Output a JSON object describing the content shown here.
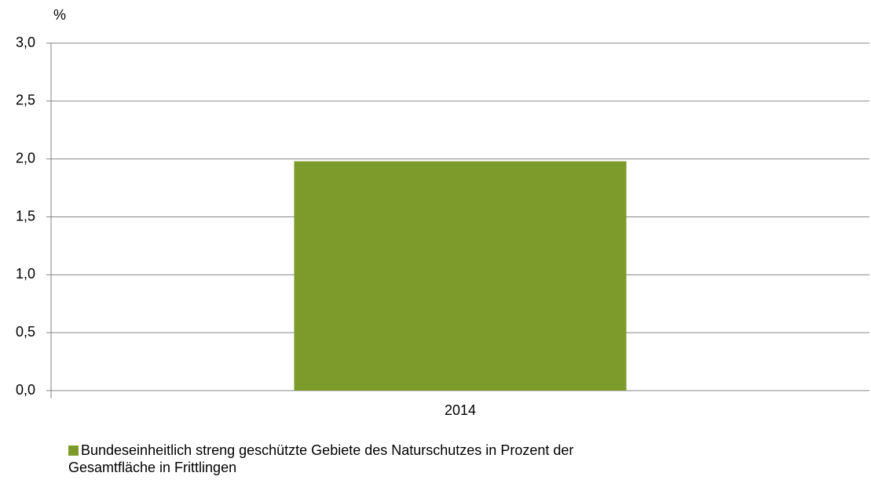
{
  "chart_data": {
    "type": "bar",
    "y_axis_label": "%",
    "categories": [
      "2014"
    ],
    "series": [
      {
        "name": "Bundeseinheitlich streng geschützte Gebiete des Naturschutzes in Prozent der Gesamtfläche in Frittlingen",
        "color": "#7d9b2a",
        "values": [
          1.98
        ]
      }
    ],
    "ylim": [
      0,
      3
    ],
    "yticks": [
      {
        "value": 0,
        "label": "0,0"
      },
      {
        "value": 0.5,
        "label": "0,5"
      },
      {
        "value": 1,
        "label": "1,0"
      },
      {
        "value": 1.5,
        "label": "1,5"
      },
      {
        "value": 2,
        "label": "2,0"
      },
      {
        "value": 2.5,
        "label": "2,5"
      },
      {
        "value": 3,
        "label": "3,0"
      }
    ],
    "grid": true,
    "legend": "bottom-left"
  }
}
